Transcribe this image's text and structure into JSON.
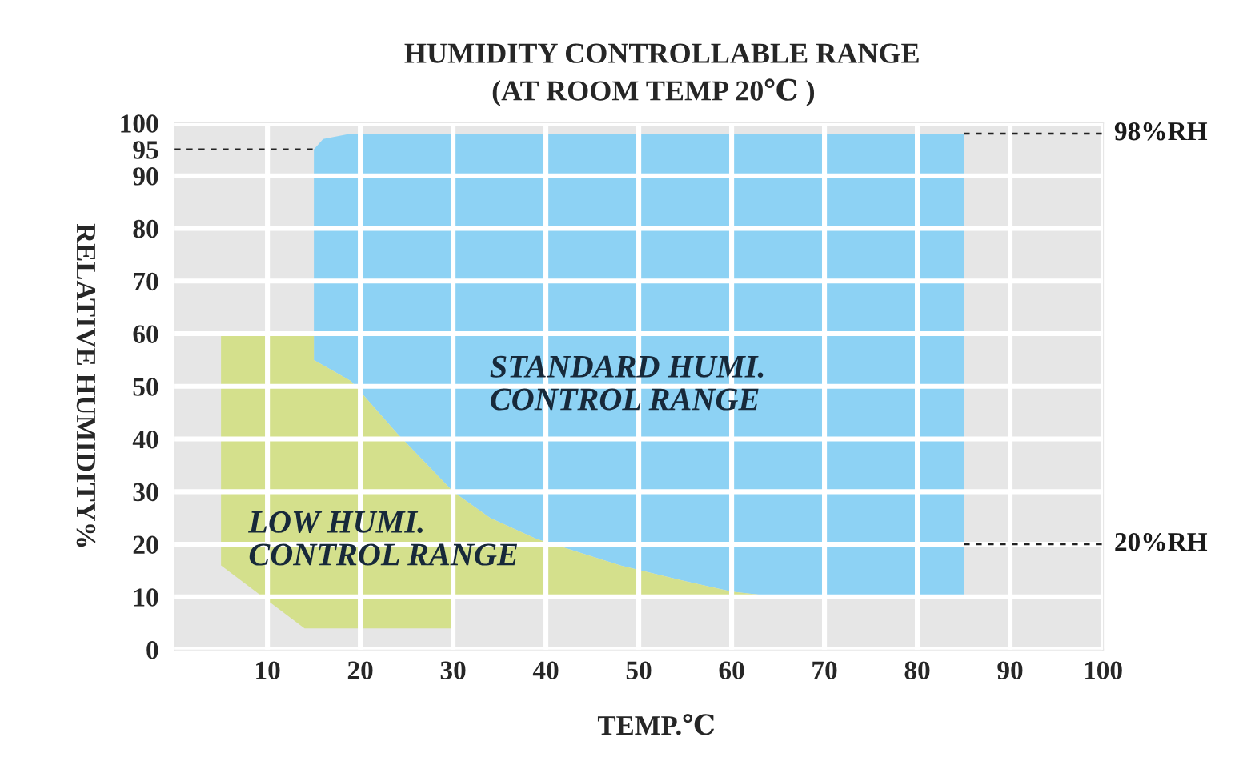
{
  "chart_data": {
    "type": "area",
    "title": "HUMIDITY CONTROLLABLE RANGE",
    "subtitle": "(AT ROOM TEMP 20℃ )",
    "xlabel": "TEMP.℃",
    "ylabel": "RELATIVE HUMIDITY%",
    "xlim": [
      0,
      100
    ],
    "ylim": [
      0,
      100
    ],
    "xticks": [
      10,
      20,
      30,
      40,
      50,
      60,
      70,
      80,
      90,
      100
    ],
    "yticks": [
      0,
      10,
      20,
      30,
      40,
      50,
      60,
      70,
      80,
      90,
      95,
      100
    ],
    "grid": true,
    "series": [
      {
        "color": "#8dd2f4",
        "x": [
          15,
          16,
          19,
          24,
          30,
          34,
          39,
          48,
          55,
          60,
          65,
          85
        ],
        "values": [
          null,
          null,
          null,
          null,
          null,
          null,
          null,
          null,
          null,
          null,
          null,
          null
        ],
        "upper": [
          95,
          97,
          98,
          98,
          98,
          98,
          98,
          98,
          98,
          98,
          98,
          98
        ],
        "lower": [
          55,
          54,
          51,
          41,
          30,
          25,
          21,
          16,
          13,
          11,
          10,
          10
        ]
      },
      {
        "color": "#d4e08c",
        "x": [
          5,
          14,
          15,
          15,
          16,
          19,
          24,
          30,
          30,
          34,
          39,
          48,
          55,
          60,
          65
        ],
        "values": [
          null,
          null,
          null,
          null,
          null,
          null,
          null,
          null,
          null,
          null,
          null,
          null,
          null,
          null,
          null
        ],
        "upper": [
          60,
          60,
          60,
          55,
          54,
          51,
          41,
          30,
          30,
          25,
          21,
          16,
          13,
          11,
          10
        ],
        "lower": [
          16,
          4,
          4,
          4,
          4,
          4,
          4,
          4,
          10,
          10,
          10,
          10,
          10,
          10,
          10
        ]
      }
    ],
    "ref_lines": [
      {
        "axis": "y",
        "value": 95,
        "line_style": "dashed"
      },
      {
        "axis": "y",
        "value": 98,
        "label": "98%RH",
        "line_style": "dashed"
      },
      {
        "axis": "y",
        "value": 20,
        "label": "20%RH",
        "line_style": "dashed"
      }
    ],
    "annotations": [
      "STANDARD HUMI.\nCONTROL RANGE",
      "LOW HUMI.\nCONTROL RANGE"
    ]
  }
}
